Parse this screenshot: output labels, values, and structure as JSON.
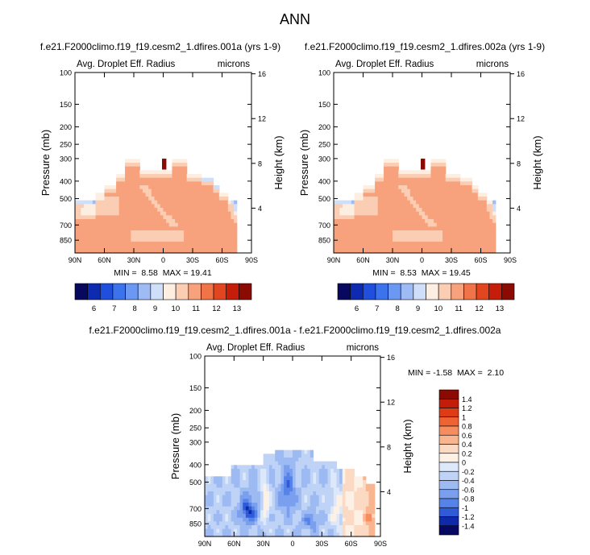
{
  "figure": {
    "title": "ANN"
  },
  "chart_data": [
    {
      "type": "heatmap",
      "id": "panel-a",
      "case_title": "f.e21.F2000climo.f19_f19.cesm2_1.dfires.001a (yrs 1-9)",
      "left_label": "Avg. Droplet Eff. Radius",
      "right_label": "microns",
      "ylabel": "Pressure (mb)",
      "y2label": "Height (km)",
      "x_ticks": [
        "90N",
        "60N",
        "30N",
        "0",
        "30S",
        "60S",
        "90S"
      ],
      "x_range": [
        90,
        -90
      ],
      "y_ticks": [
        "100",
        "150",
        "200",
        "250",
        "300",
        "400",
        "500",
        "700",
        "850"
      ],
      "y_range_mb": [
        100,
        1000
      ],
      "y2_ticks": [
        "16",
        "12",
        "8",
        "4"
      ],
      "stats_text": "MIN =  8.58  MAX = 19.41",
      "min": 8.58,
      "max": 19.41,
      "colorbar_labels": [
        "6",
        "7",
        "8",
        "9",
        "10",
        "11",
        "12",
        "13"
      ],
      "colorbar_levels": [
        6,
        7,
        8,
        9,
        10,
        11,
        12,
        13
      ]
    },
    {
      "type": "heatmap",
      "id": "panel-b",
      "case_title": "f.e21.F2000climo.f19_f19.cesm2_1.dfires.002a (yrs 1-9)",
      "left_label": "Avg. Droplet Eff. Radius",
      "right_label": "microns",
      "ylabel": "Pressure (mb)",
      "y2label": "Height (km)",
      "x_ticks": [
        "90N",
        "60N",
        "30N",
        "0",
        "30S",
        "60S",
        "90S"
      ],
      "x_range": [
        90,
        -90
      ],
      "y_ticks": [
        "100",
        "150",
        "200",
        "250",
        "300",
        "400",
        "500",
        "700",
        "850"
      ],
      "y_range_mb": [
        100,
        1000
      ],
      "y2_ticks": [
        "16",
        "12",
        "8",
        "4"
      ],
      "stats_text": "MIN =  8.53  MAX = 19.45",
      "min": 8.53,
      "max": 19.45,
      "colorbar_labels": [
        "6",
        "7",
        "8",
        "9",
        "10",
        "11",
        "12",
        "13"
      ],
      "colorbar_levels": [
        6,
        7,
        8,
        9,
        10,
        11,
        12,
        13
      ]
    },
    {
      "type": "heatmap",
      "id": "panel-diff",
      "case_title": "f.e21.F2000climo.f19_f19.cesm2_1.dfires.001a - f.e21.F2000climo.f19_f19.cesm2_1.dfires.002a",
      "left_label": "Avg. Droplet Eff. Radius",
      "right_label": "microns",
      "ylabel": "Pressure (mb)",
      "y2label": "Height (km)",
      "x_ticks": [
        "90N",
        "60N",
        "30N",
        "0",
        "30S",
        "60S",
        "90S"
      ],
      "x_range": [
        90,
        -90
      ],
      "y_ticks": [
        "100",
        "150",
        "200",
        "250",
        "300",
        "400",
        "500",
        "700",
        "850"
      ],
      "y_range_mb": [
        100,
        1000
      ],
      "y2_ticks": [
        "16",
        "12",
        "8",
        "4"
      ],
      "stats_text": "MIN = -1.58  MAX =  2.10",
      "min": -1.58,
      "max": 2.1,
      "colorbar_labels": [
        "1.4",
        "1.2",
        "1",
        "0.8",
        "0.6",
        "0.4",
        "0.2",
        "0",
        "-0.2",
        "-0.4",
        "-0.6",
        "-0.8",
        "-1",
        "-1.2",
        "-1.4"
      ],
      "colorbar_levels": [
        1.4,
        1.2,
        1.0,
        0.8,
        0.6,
        0.4,
        0.2,
        0,
        -0.2,
        -0.4,
        -0.6,
        -0.8,
        -1.0,
        -1.2,
        -1.4
      ]
    }
  ],
  "colors": {
    "seq_scale": [
      "#08085e",
      "#0d2ab0",
      "#1f4fdc",
      "#3b73ec",
      "#6a98f2",
      "#9ebbf6",
      "#cfdff9",
      "#fdeee2",
      "#fbcdb3",
      "#f7a27d",
      "#f07447",
      "#e24620",
      "#c51d0a",
      "#8b0a02"
    ],
    "div_scale": [
      "#8b0a02",
      "#c31c08",
      "#de3c14",
      "#ef6333",
      "#f58d5e",
      "#f9b58f",
      "#fbd9c2",
      "#fdf0e5",
      "#dde9fa",
      "#bfd3f6",
      "#9dbaf2",
      "#7a9fee",
      "#5683e8",
      "#2f5ad8",
      "#0e2aa8",
      "#080864"
    ]
  }
}
